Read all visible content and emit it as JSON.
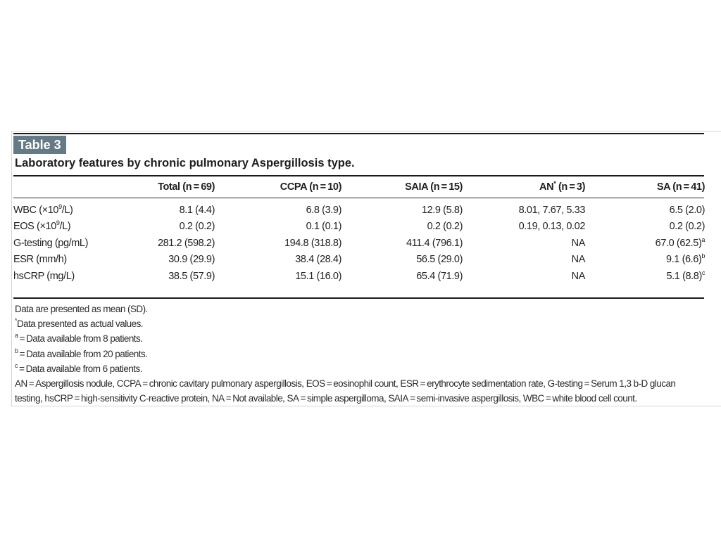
{
  "table_label": "Table 3",
  "caption": "Laboratory features by chronic pulmonary Aspergillosis type.",
  "headers": [
    {
      "text": "",
      "sup": ""
    },
    {
      "text": "Total (n = 69)",
      "sup": ""
    },
    {
      "text": "CCPA (n = 10)",
      "sup": ""
    },
    {
      "text": "SAIA (n = 15)",
      "sup": ""
    },
    {
      "text": "AN",
      "sup": "*",
      "rest": " (n = 3)"
    },
    {
      "text": "SA (n = 41)",
      "sup": ""
    }
  ],
  "rows": [
    {
      "label": "WBC (×10",
      "label_sup": "9",
      "label_rest": "/L)",
      "values": [
        {
          "v": "8.1 (4.4)"
        },
        {
          "v": "6.8 (3.9)"
        },
        {
          "v": "12.9 (5.8)"
        },
        {
          "v": "8.01, 7.67, 5.33"
        },
        {
          "v": "6.5 (2.0)"
        }
      ]
    },
    {
      "label": "EOS (×10",
      "label_sup": "9",
      "label_rest": "/L)",
      "values": [
        {
          "v": "0.2 (0.2)"
        },
        {
          "v": "0.1 (0.1)"
        },
        {
          "v": "0.2 (0.2)"
        },
        {
          "v": "0.19, 0.13, 0.02"
        },
        {
          "v": "0.2 (0.2)"
        }
      ]
    },
    {
      "label": "G-testing (pg/mL)",
      "label_sup": "",
      "label_rest": "",
      "values": [
        {
          "v": "281.2 (598.2)"
        },
        {
          "v": "194.8 (318.8)"
        },
        {
          "v": "411.4 (796.1)"
        },
        {
          "v": "NA"
        },
        {
          "v": "67.0 (62.5)",
          "sup": "a"
        }
      ]
    },
    {
      "label": "ESR (mm/h)",
      "label_sup": "",
      "label_rest": "",
      "values": [
        {
          "v": "30.9 (29.9)"
        },
        {
          "v": "38.4 (28.4)"
        },
        {
          "v": "56.5 (29.0)"
        },
        {
          "v": "NA"
        },
        {
          "v": "9.1 (6.6)",
          "sup": "b"
        }
      ]
    },
    {
      "label": "hsCRP (mg/L)",
      "label_sup": "",
      "label_rest": "",
      "values": [
        {
          "v": "38.5 (57.9)"
        },
        {
          "v": "15.1 (16.0)"
        },
        {
          "v": "65.4 (71.9)"
        },
        {
          "v": "NA"
        },
        {
          "v": "5.1 (8.8)",
          "sup": "c"
        }
      ]
    }
  ],
  "notes": {
    "line1": "Data are presented as mean (SD).",
    "line2_sup": "*",
    "line2": "Data presented as actual values.",
    "line3_sup": "a",
    "line3": " = Data available from 8 patients.",
    "line4_sup": "b",
    "line4": " = Data available from 20 patients.",
    "line5_sup": "c",
    "line5": " = Data available from 6 patients.",
    "abbreviations": "AN = Aspergillosis nodule, CCPA = chronic cavitary pulmonary aspergillosis, EOS = eosinophil count, ESR = erythrocyte sedimentation rate, G-testing = Serum 1,3 b-D glucan testing, hsCRP = high-sensitivity C-reactive protein, NA = Not available, SA = simple aspergilloma, SAIA = semi-invasive aspergillosis, WBC = white blood cell count."
  },
  "colors": {
    "badge": "#647a85",
    "rule": "#1a1a1a"
  }
}
